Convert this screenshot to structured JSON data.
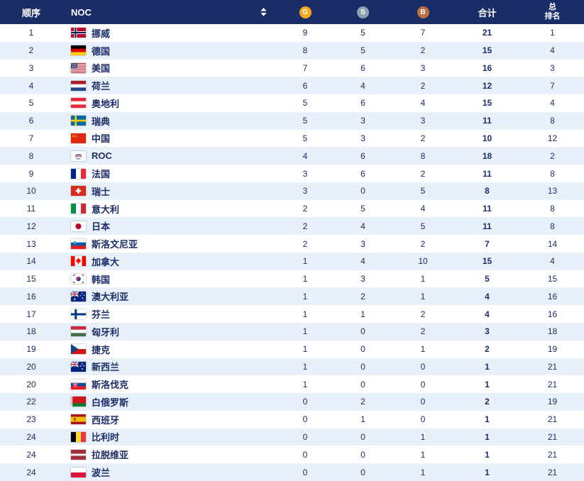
{
  "chart_data": {
    "type": "table",
    "columns": [
      {
        "key": "rank",
        "label": "顺序"
      },
      {
        "key": "noc",
        "label": "NOC",
        "sortable": true
      },
      {
        "key": "gold",
        "label": "G"
      },
      {
        "key": "silver",
        "label": "S"
      },
      {
        "key": "bronze",
        "label": "B"
      },
      {
        "key": "total",
        "label": "合计"
      },
      {
        "key": "overall",
        "label": "总排名"
      }
    ],
    "rows": [
      {
        "rank": 1,
        "flag": "norway",
        "noc": "挪威",
        "gold": 9,
        "silver": 5,
        "bronze": 7,
        "total": 21,
        "overall": 1
      },
      {
        "rank": 2,
        "flag": "germany",
        "noc": "德国",
        "gold": 8,
        "silver": 5,
        "bronze": 2,
        "total": 15,
        "overall": 4
      },
      {
        "rank": 3,
        "flag": "usa",
        "noc": "美国",
        "gold": 7,
        "silver": 6,
        "bronze": 3,
        "total": 16,
        "overall": 3
      },
      {
        "rank": 4,
        "flag": "netherlands",
        "noc": "荷兰",
        "gold": 6,
        "silver": 4,
        "bronze": 2,
        "total": 12,
        "overall": 7
      },
      {
        "rank": 5,
        "flag": "austria",
        "noc": "奥地利",
        "gold": 5,
        "silver": 6,
        "bronze": 4,
        "total": 15,
        "overall": 4
      },
      {
        "rank": 6,
        "flag": "sweden",
        "noc": "瑞典",
        "gold": 5,
        "silver": 3,
        "bronze": 3,
        "total": 11,
        "overall": 8
      },
      {
        "rank": 7,
        "flag": "china",
        "noc": "中国",
        "gold": 5,
        "silver": 3,
        "bronze": 2,
        "total": 10,
        "overall": 12
      },
      {
        "rank": 8,
        "flag": "roc",
        "noc": "ROC",
        "gold": 4,
        "silver": 6,
        "bronze": 8,
        "total": 18,
        "overall": 2
      },
      {
        "rank": 9,
        "flag": "france",
        "noc": "法国",
        "gold": 3,
        "silver": 6,
        "bronze": 2,
        "total": 11,
        "overall": 8
      },
      {
        "rank": 10,
        "flag": "switzerland",
        "noc": "瑞士",
        "gold": 3,
        "silver": 0,
        "bronze": 5,
        "total": 8,
        "overall": 13
      },
      {
        "rank": 11,
        "flag": "italy",
        "noc": "意大利",
        "gold": 2,
        "silver": 5,
        "bronze": 4,
        "total": 11,
        "overall": 8
      },
      {
        "rank": 12,
        "flag": "japan",
        "noc": "日本",
        "gold": 2,
        "silver": 4,
        "bronze": 5,
        "total": 11,
        "overall": 8
      },
      {
        "rank": 13,
        "flag": "slovenia",
        "noc": "斯洛文尼亚",
        "gold": 2,
        "silver": 3,
        "bronze": 2,
        "total": 7,
        "overall": 14
      },
      {
        "rank": 14,
        "flag": "canada",
        "noc": "加拿大",
        "gold": 1,
        "silver": 4,
        "bronze": 10,
        "total": 15,
        "overall": 4
      },
      {
        "rank": 15,
        "flag": "south-korea",
        "noc": "韩国",
        "gold": 1,
        "silver": 3,
        "bronze": 1,
        "total": 5,
        "overall": 15
      },
      {
        "rank": 16,
        "flag": "australia",
        "noc": "澳大利亚",
        "gold": 1,
        "silver": 2,
        "bronze": 1,
        "total": 4,
        "overall": 16
      },
      {
        "rank": 17,
        "flag": "finland",
        "noc": "芬兰",
        "gold": 1,
        "silver": 1,
        "bronze": 2,
        "total": 4,
        "overall": 16
      },
      {
        "rank": 18,
        "flag": "hungary",
        "noc": "匈牙利",
        "gold": 1,
        "silver": 0,
        "bronze": 2,
        "total": 3,
        "overall": 18
      },
      {
        "rank": 19,
        "flag": "czech-republic",
        "noc": "捷克",
        "gold": 1,
        "silver": 0,
        "bronze": 1,
        "total": 2,
        "overall": 19
      },
      {
        "rank": 20,
        "flag": "new-zealand",
        "noc": "新西兰",
        "gold": 1,
        "silver": 0,
        "bronze": 0,
        "total": 1,
        "overall": 21
      },
      {
        "rank": 20,
        "flag": "slovakia",
        "noc": "斯洛伐克",
        "gold": 1,
        "silver": 0,
        "bronze": 0,
        "total": 1,
        "overall": 21
      },
      {
        "rank": 22,
        "flag": "belarus",
        "noc": "白俄罗斯",
        "gold": 0,
        "silver": 2,
        "bronze": 0,
        "total": 2,
        "overall": 19
      },
      {
        "rank": 23,
        "flag": "spain",
        "noc": "西班牙",
        "gold": 0,
        "silver": 1,
        "bronze": 0,
        "total": 1,
        "overall": 21
      },
      {
        "rank": 24,
        "flag": "belgium",
        "noc": "比利时",
        "gold": 0,
        "silver": 0,
        "bronze": 1,
        "total": 1,
        "overall": 21
      },
      {
        "rank": 24,
        "flag": "latvia",
        "noc": "拉脱维亚",
        "gold": 0,
        "silver": 0,
        "bronze": 1,
        "total": 1,
        "overall": 21
      },
      {
        "rank": 24,
        "flag": "poland",
        "noc": "波兰",
        "gold": 0,
        "silver": 0,
        "bronze": 1,
        "total": 1,
        "overall": 21
      }
    ]
  },
  "ui": {
    "overall_header_lines": [
      "总",
      "排名"
    ],
    "icons": {
      "sort": "sort-arrows-icon",
      "gold_medal": "gold-medal-icon",
      "silver_medal": "silver-medal-icon",
      "bronze_medal": "bronze-medal-icon",
      "row_flag": "country-flag-icon"
    }
  },
  "colors": {
    "header_bg": "#1B2D67",
    "header_text": "#FFFFFF",
    "gold": "#F5A81C",
    "silver": "#8E9FAF",
    "bronze": "#BE7145",
    "row_bg": "#FFFFFF",
    "row_alt_bg": "#E8F1FA",
    "text": "#1B2D67"
  }
}
